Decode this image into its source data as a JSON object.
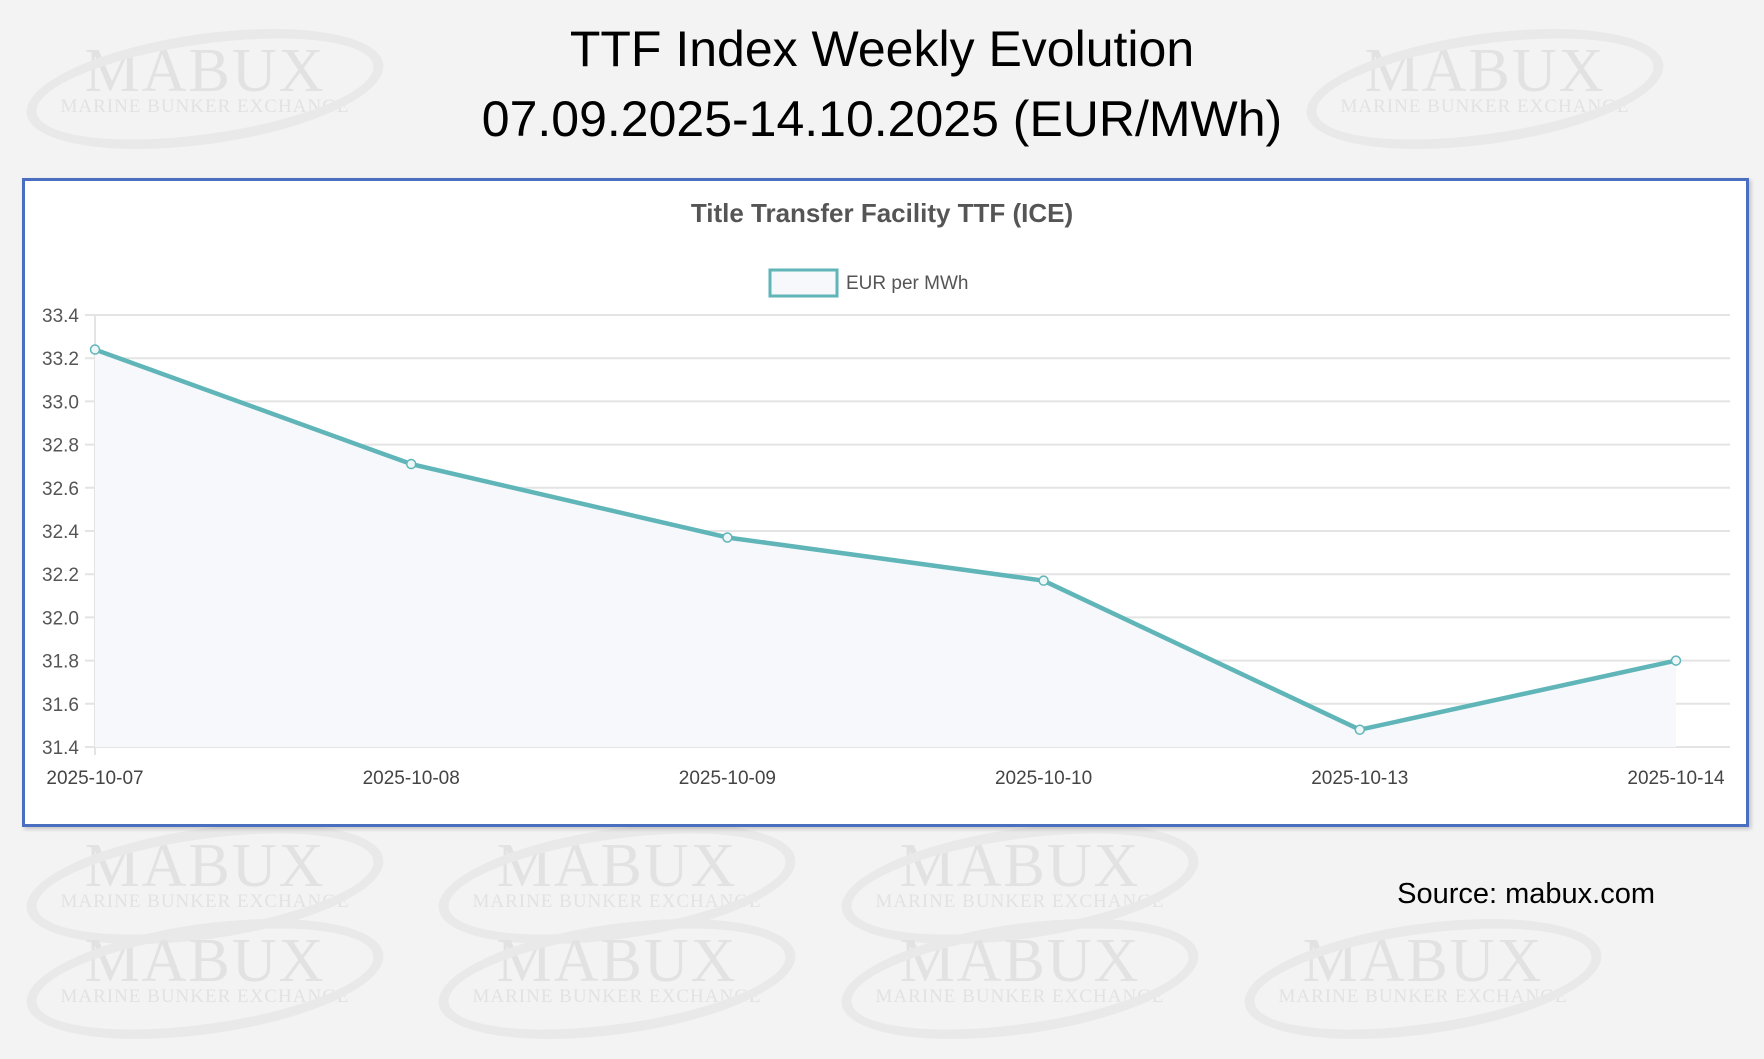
{
  "header": {
    "title_line1": "TTF Index Weekly Evolution",
    "title_line2": "07.09.2025-14.10.2025 (EUR/MWh)"
  },
  "watermark": {
    "logo": "MABUX",
    "tagline": "MARINE BUNKER EXCHANGE"
  },
  "source": "Source: mabux.com",
  "colors": {
    "line": "#5fb5b8",
    "fill": "#f7f8fb",
    "border": "#4a6fc1",
    "grid": "#e4e4e4"
  },
  "chart_data": {
    "type": "line",
    "title": "Title Transfer Facility TTF (ICE)",
    "legend": "top",
    "grid": true,
    "categories": [
      "2025-10-07",
      "2025-10-08",
      "2025-10-09",
      "2025-10-10",
      "2025-10-13",
      "2025-10-14"
    ],
    "series": [
      {
        "name": "EUR per MWh",
        "values": [
          33.24,
          32.71,
          32.37,
          32.17,
          31.48,
          31.8
        ]
      }
    ],
    "ylim": [
      31.4,
      33.4
    ],
    "yticks": [
      "33.4",
      "33.2",
      "33.0",
      "32.8",
      "32.6",
      "32.4",
      "32.2",
      "32.0",
      "31.8",
      "31.6",
      "31.4"
    ]
  }
}
